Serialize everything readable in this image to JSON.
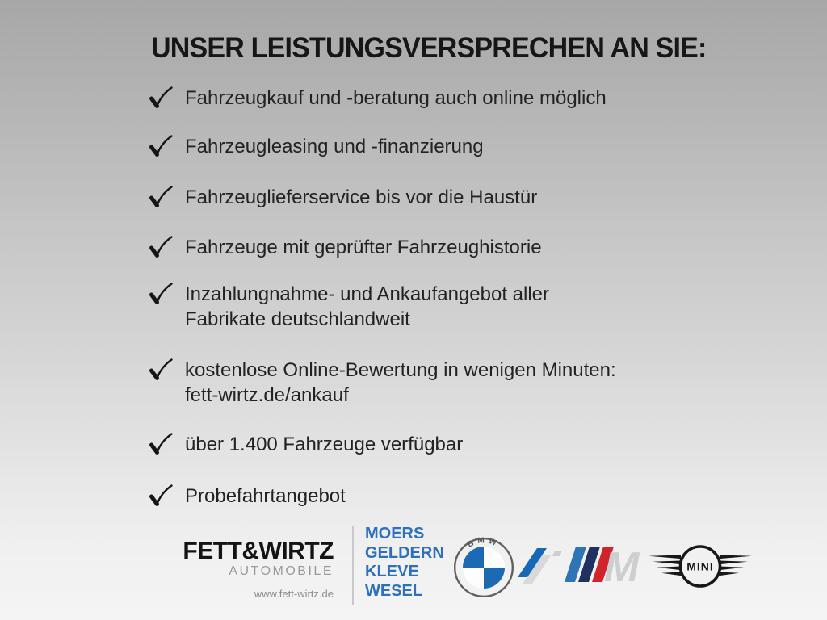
{
  "headline": "UNSER LEISTUNGSVERSPRECHEN AN SIE:",
  "checklist": {
    "items": [
      {
        "lines": [
          "Fahrzeugkauf und -beratung auch online möglich"
        ]
      },
      {
        "lines": [
          "Fahrzeugleasing und -finanzierung"
        ]
      },
      {
        "lines": [
          "Fahrzeuglieferservice bis vor die Haustür"
        ]
      },
      {
        "lines": [
          "Fahrzeuge mit geprüfter Fahrzeughistorie"
        ]
      },
      {
        "lines": [
          "Inzahlungnahme- und Ankaufangebot aller",
          "Fabrikate deutschlandweit"
        ]
      },
      {
        "lines": [
          "kostenlose Online-Bewertung in wenigen Minuten:",
          "fett-wirtz.de/ankauf"
        ]
      },
      {
        "lines": [
          "über 1.400 Fahrzeuge verfügbar"
        ]
      },
      {
        "lines": [
          "Probefahrtangebot"
        ]
      }
    ]
  },
  "footer": {
    "dealer": {
      "name": "FETT&WIRTZ",
      "subtitle": "AUTOMOBILE",
      "website": "www.fett-wirtz.de"
    },
    "locations": [
      "MOERS",
      "GELDERN",
      "KLEVE",
      "WESEL"
    ],
    "brands": {
      "bmw": {
        "roundel_text": "BMW"
      },
      "mini": {
        "label": "MINI"
      },
      "m": {
        "letter": "M"
      }
    },
    "colors": {
      "bmw_blue": "#1c6ab3",
      "bmw_i_blue": "#1468b6",
      "m_light_blue": "#2e75b6",
      "m_dark_blue": "#1e3160",
      "m_red": "#d1232a",
      "brand_silver": "#cdced0",
      "brand_gray_slash": "#d8d9da",
      "location_blue": "#2e6fc0"
    }
  }
}
